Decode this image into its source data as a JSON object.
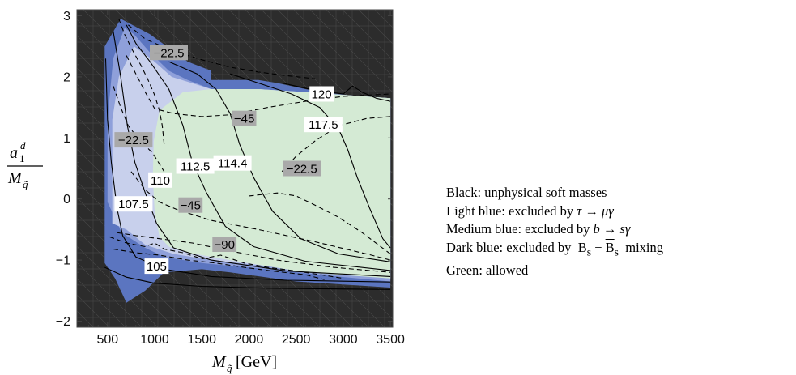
{
  "chart_data": {
    "type": "contour",
    "xlabel": {
      "main": "M",
      "sub": "q̃",
      "unit": "[GeV]"
    },
    "ylabel": {
      "num_main": "a",
      "num_sub": "1",
      "num_sup": "d",
      "den_main": "M",
      "den_sub": "q̃"
    },
    "xlim": [
      175,
      3525
    ],
    "ylim": [
      -2.1,
      3.1
    ],
    "x_ticks": [
      {
        "v": 500,
        "label": "500"
      },
      {
        "v": 1000,
        "label": "1000"
      },
      {
        "v": 1500,
        "label": "1500"
      },
      {
        "v": 2000,
        "label": "2000"
      },
      {
        "v": 2500,
        "label": "2500"
      },
      {
        "v": 3000,
        "label": "3000"
      },
      {
        "v": 3500,
        "label": "3500"
      }
    ],
    "y_ticks": [
      {
        "v": -2,
        "label": "−2"
      },
      {
        "v": -1,
        "label": "−1"
      },
      {
        "v": 0,
        "label": "0"
      },
      {
        "v": 1,
        "label": "1"
      },
      {
        "v": 2,
        "label": "2"
      },
      {
        "v": 3,
        "label": "3"
      }
    ],
    "colors": {
      "black": "#2c2c2c",
      "dark_blue": "#5b75c0",
      "medium_blue": "#8fa0da",
      "light_blue": "#c8d0ec",
      "green": "#d4ead4",
      "label_grey": "#a9a9a9"
    },
    "regions": [
      {
        "key": "dark_blue",
        "points": [
          [
            470,
            -1.05
          ],
          [
            470,
            2.5
          ],
          [
            640,
            2.95
          ],
          [
            950,
            2.7
          ],
          [
            1350,
            2.25
          ],
          [
            1600,
            2.1
          ],
          [
            1600,
            1.95
          ],
          [
            2100,
            1.95
          ],
          [
            2300,
            1.9
          ],
          [
            2600,
            1.8
          ],
          [
            2780,
            1.75
          ],
          [
            3050,
            1.7
          ],
          [
            3500,
            1.65
          ],
          [
            3500,
            -1.45
          ],
          [
            2500,
            -1.35
          ],
          [
            1800,
            -1.2
          ],
          [
            1500,
            -1.15
          ],
          [
            1100,
            -1.2
          ],
          [
            900,
            -1.5
          ],
          [
            700,
            -1.7
          ],
          [
            580,
            -1.3
          ]
        ]
      },
      {
        "key": "medium_blue",
        "points": [
          [
            500,
            -0.05
          ],
          [
            500,
            1.3
          ],
          [
            560,
            2.3
          ],
          [
            680,
            2.8
          ],
          [
            780,
            2.7
          ],
          [
            950,
            2.4
          ],
          [
            1150,
            2.1
          ],
          [
            1350,
            1.95
          ],
          [
            1600,
            1.8
          ],
          [
            2100,
            1.8
          ],
          [
            2600,
            1.75
          ],
          [
            3500,
            1.65
          ],
          [
            3500,
            -1.35
          ],
          [
            2800,
            -1.25
          ],
          [
            2200,
            -1.15
          ],
          [
            1500,
            -1.05
          ],
          [
            1100,
            -0.95
          ],
          [
            900,
            -0.8
          ],
          [
            650,
            -0.55
          ]
        ]
      },
      {
        "key": "light_blue",
        "points": [
          [
            550,
            -0.4
          ],
          [
            550,
            1.3
          ],
          [
            620,
            2.0
          ],
          [
            780,
            2.5
          ],
          [
            960,
            2.3
          ],
          [
            1180,
            2.0
          ],
          [
            1600,
            1.8
          ],
          [
            2100,
            1.8
          ],
          [
            2600,
            1.75
          ],
          [
            3500,
            1.65
          ],
          [
            3500,
            -1.3
          ],
          [
            2800,
            -1.2
          ],
          [
            2200,
            -1.1
          ],
          [
            1600,
            -1.0
          ],
          [
            1200,
            -0.9
          ],
          [
            900,
            -0.75
          ],
          [
            700,
            -0.5
          ]
        ]
      },
      {
        "key": "green",
        "points": [
          [
            1050,
            1.45
          ],
          [
            1300,
            1.75
          ],
          [
            1600,
            1.8
          ],
          [
            2100,
            1.8
          ],
          [
            2600,
            1.75
          ],
          [
            3050,
            1.7
          ],
          [
            3500,
            1.65
          ],
          [
            3500,
            -1.3
          ],
          [
            2600,
            -1.2
          ],
          [
            1800,
            -1.0
          ],
          [
            1350,
            -0.88
          ],
          [
            1150,
            -0.78
          ],
          [
            1050,
            -0.62
          ],
          [
            1000,
            -0.2
          ],
          [
            980,
            0.35
          ],
          [
            990,
            0.95
          ]
        ]
      }
    ],
    "solid_contours": [
      {
        "label": "105",
        "points": [
          [
            470,
            -1.12
          ],
          [
            700,
            -1.28
          ],
          [
            1000,
            -1.38
          ],
          [
            1500,
            -1.43
          ],
          [
            2200,
            -1.46
          ],
          [
            3500,
            -1.48
          ]
        ]
      },
      {
        "label": "107.5",
        "points": [
          [
            480,
            2.3
          ],
          [
            500,
            1.3
          ],
          [
            540,
            0.6
          ],
          [
            600,
            -0.15
          ],
          [
            660,
            -0.6
          ],
          [
            800,
            -0.95
          ],
          [
            1100,
            -1.15
          ],
          [
            1600,
            -1.27
          ],
          [
            2400,
            -1.33
          ],
          [
            3500,
            -1.36
          ]
        ]
      },
      {
        "label": "110",
        "points": [
          [
            560,
            2.75
          ],
          [
            640,
            2.0
          ],
          [
            710,
            1.2
          ],
          [
            790,
            0.6
          ],
          [
            900,
            0.1
          ],
          [
            1020,
            -0.4
          ],
          [
            1200,
            -0.8
          ],
          [
            1600,
            -1.0
          ],
          [
            2400,
            -1.18
          ],
          [
            3500,
            -1.27
          ]
        ]
      },
      {
        "label": "112.5",
        "points": [
          [
            700,
            2.85
          ],
          [
            800,
            2.55
          ],
          [
            950,
            2.25
          ],
          [
            1150,
            1.8
          ],
          [
            1300,
            1.2
          ],
          [
            1400,
            0.6
          ],
          [
            1550,
            0.1
          ],
          [
            1750,
            -0.45
          ],
          [
            2050,
            -0.78
          ],
          [
            2600,
            -1.02
          ],
          [
            3500,
            -1.17
          ]
        ]
      },
      {
        "label": "114.4",
        "points": [
          [
            1150,
            2.25
          ],
          [
            1450,
            2.05
          ],
          [
            1650,
            1.8
          ],
          [
            1800,
            1.4
          ],
          [
            1900,
            0.9
          ],
          [
            2050,
            0.35
          ],
          [
            2250,
            -0.2
          ],
          [
            2550,
            -0.65
          ],
          [
            2950,
            -0.9
          ],
          [
            3500,
            -1.03
          ]
        ]
      },
      {
        "label": "117.5",
        "points": [
          [
            1800,
            2.05
          ],
          [
            2100,
            1.9
          ],
          [
            2450,
            1.72
          ],
          [
            2750,
            1.5
          ],
          [
            2950,
            1.15
          ],
          [
            3050,
            0.8
          ],
          [
            3150,
            0.35
          ],
          [
            3280,
            -0.15
          ],
          [
            3420,
            -0.65
          ],
          [
            3500,
            -0.8
          ]
        ]
      },
      {
        "label": "120",
        "points": [
          [
            2350,
            1.9
          ],
          [
            2700,
            1.78
          ],
          [
            3000,
            1.72
          ],
          [
            3100,
            1.85
          ],
          [
            3200,
            1.75
          ],
          [
            3350,
            1.65
          ],
          [
            3500,
            1.6
          ]
        ]
      }
    ],
    "dashed_contours": [
      {
        "label": "−22.5",
        "points": [
          [
            620,
            2.95
          ],
          [
            680,
            2.7
          ],
          [
            760,
            2.45
          ],
          [
            850,
            2.2
          ],
          [
            930,
            1.95
          ],
          [
            1000,
            1.7
          ],
          [
            1050,
            1.45
          ],
          [
            1080,
            1.2
          ],
          [
            1100,
            0.9
          ]
        ]
      },
      {
        "label": "−22.5",
        "points": [
          [
            720,
            2.85
          ],
          [
            900,
            2.62
          ],
          [
            1200,
            2.42
          ],
          [
            1500,
            2.28
          ],
          [
            1800,
            2.16
          ],
          [
            2100,
            2.08
          ],
          [
            2400,
            2.02
          ],
          [
            2700,
            1.97
          ]
        ]
      },
      {
        "label": "−22.5",
        "points": [
          [
            560,
            1.85
          ],
          [
            640,
            1.5
          ],
          [
            720,
            1.2
          ],
          [
            820,
            1.0
          ],
          [
            980,
            0.75
          ],
          [
            1100,
            0.45
          ]
        ]
      },
      {
        "label": "−22.5",
        "points": [
          [
            2350,
            0.45
          ],
          [
            2500,
            0.7
          ],
          [
            2700,
            0.95
          ],
          [
            2950,
            1.2
          ],
          [
            3250,
            1.32
          ],
          [
            3500,
            1.35
          ]
        ]
      },
      {
        "label": "−22.5",
        "points": [
          [
            2000,
            0.05
          ],
          [
            2300,
            0.1
          ],
          [
            2500,
            0.05
          ],
          [
            2700,
            -0.1
          ],
          [
            2950,
            -0.3
          ],
          [
            3200,
            -0.55
          ],
          [
            3500,
            -0.9
          ]
        ]
      },
      {
        "label": "−45",
        "points": [
          [
            700,
            2.35
          ],
          [
            800,
            2.05
          ],
          [
            900,
            1.75
          ],
          [
            1000,
            1.48
          ],
          [
            1200,
            1.4
          ],
          [
            1500,
            1.35
          ],
          [
            1800,
            1.38
          ],
          [
            2200,
            1.5
          ],
          [
            2600,
            1.6
          ],
          [
            3000,
            1.68
          ],
          [
            3500,
            1.72
          ]
        ]
      },
      {
        "label": "−45",
        "points": [
          [
            750,
            0.45
          ],
          [
            900,
            0.15
          ],
          [
            1050,
            -0.05
          ],
          [
            1250,
            -0.18
          ],
          [
            1600,
            -0.35
          ],
          [
            2100,
            -0.5
          ],
          [
            2700,
            -0.7
          ],
          [
            3300,
            -0.92
          ],
          [
            3500,
            -1.0
          ]
        ]
      },
      {
        "label": "−90",
        "points": [
          [
            600,
            -0.55
          ],
          [
            800,
            -0.6
          ],
          [
            1050,
            -0.65
          ],
          [
            1400,
            -0.72
          ],
          [
            1800,
            -0.85
          ],
          [
            2300,
            -1.0
          ],
          [
            2900,
            -1.12
          ],
          [
            3500,
            -1.2
          ]
        ]
      },
      {
        "label": "",
        "points": [
          [
            520,
            -0.62
          ],
          [
            700,
            -0.72
          ],
          [
            900,
            -0.78
          ],
          [
            1000,
            -0.72
          ],
          [
            1100,
            -0.82
          ],
          [
            1300,
            -0.88
          ],
          [
            1500,
            -0.98
          ],
          [
            1700,
            -0.92
          ],
          [
            1950,
            -1.05
          ],
          [
            2200,
            -1.12
          ],
          [
            2500,
            -1.18
          ],
          [
            2800,
            -1.25
          ],
          [
            3000,
            -1.3
          ]
        ]
      },
      {
        "label": "",
        "points": [
          [
            560,
            -0.82
          ],
          [
            800,
            -0.88
          ],
          [
            1050,
            -0.92
          ],
          [
            1350,
            -1.0
          ],
          [
            1650,
            -1.05
          ],
          [
            1950,
            -1.12
          ],
          [
            2250,
            -1.18
          ],
          [
            2600,
            -1.24
          ],
          [
            2800,
            -1.32
          ]
        ]
      }
    ],
    "contour_labels": [
      {
        "text": "−22.5",
        "x": 1150,
        "y": 2.4,
        "box": "grey"
      },
      {
        "text": "−45",
        "x": 1950,
        "y": 1.32,
        "box": "grey"
      },
      {
        "text": "−22.5",
        "x": 775,
        "y": 0.97,
        "box": "grey"
      },
      {
        "text": "−22.5",
        "x": 2560,
        "y": 0.5,
        "box": "grey"
      },
      {
        "text": "−45",
        "x": 1380,
        "y": -0.1,
        "box": "grey"
      },
      {
        "text": "−90",
        "x": 1740,
        "y": -0.74,
        "box": "grey"
      },
      {
        "text": "120",
        "x": 2770,
        "y": 1.72,
        "box": "white"
      },
      {
        "text": "117.5",
        "x": 2790,
        "y": 1.22,
        "box": "white"
      },
      {
        "text": "112.5",
        "x": 1430,
        "y": 0.54,
        "box": "white"
      },
      {
        "text": "114.4",
        "x": 1825,
        "y": 0.59,
        "box": "white"
      },
      {
        "text": "110",
        "x": 1060,
        "y": 0.31,
        "box": "white"
      },
      {
        "text": "107.5",
        "x": 775,
        "y": -0.08,
        "box": "white"
      },
      {
        "text": "105",
        "x": 1020,
        "y": -1.1,
        "box": "white"
      }
    ]
  },
  "legend": [
    {
      "prefix": "Black",
      "desc": "unphysical soft masses",
      "math": ""
    },
    {
      "prefix": "Light blue",
      "desc": "excluded by",
      "math": "τ → μγ"
    },
    {
      "prefix": "Medium blue",
      "desc": "excluded by",
      "math": "b → sγ"
    },
    {
      "prefix": "Dark blue",
      "desc": "excluded by",
      "math": "bsmix"
    },
    {
      "prefix": "Green",
      "desc": "allowed",
      "math": ""
    }
  ],
  "legend_math": {
    "b": "B",
    "s": "s",
    "minus": "−",
    "mixing": "mixing"
  }
}
